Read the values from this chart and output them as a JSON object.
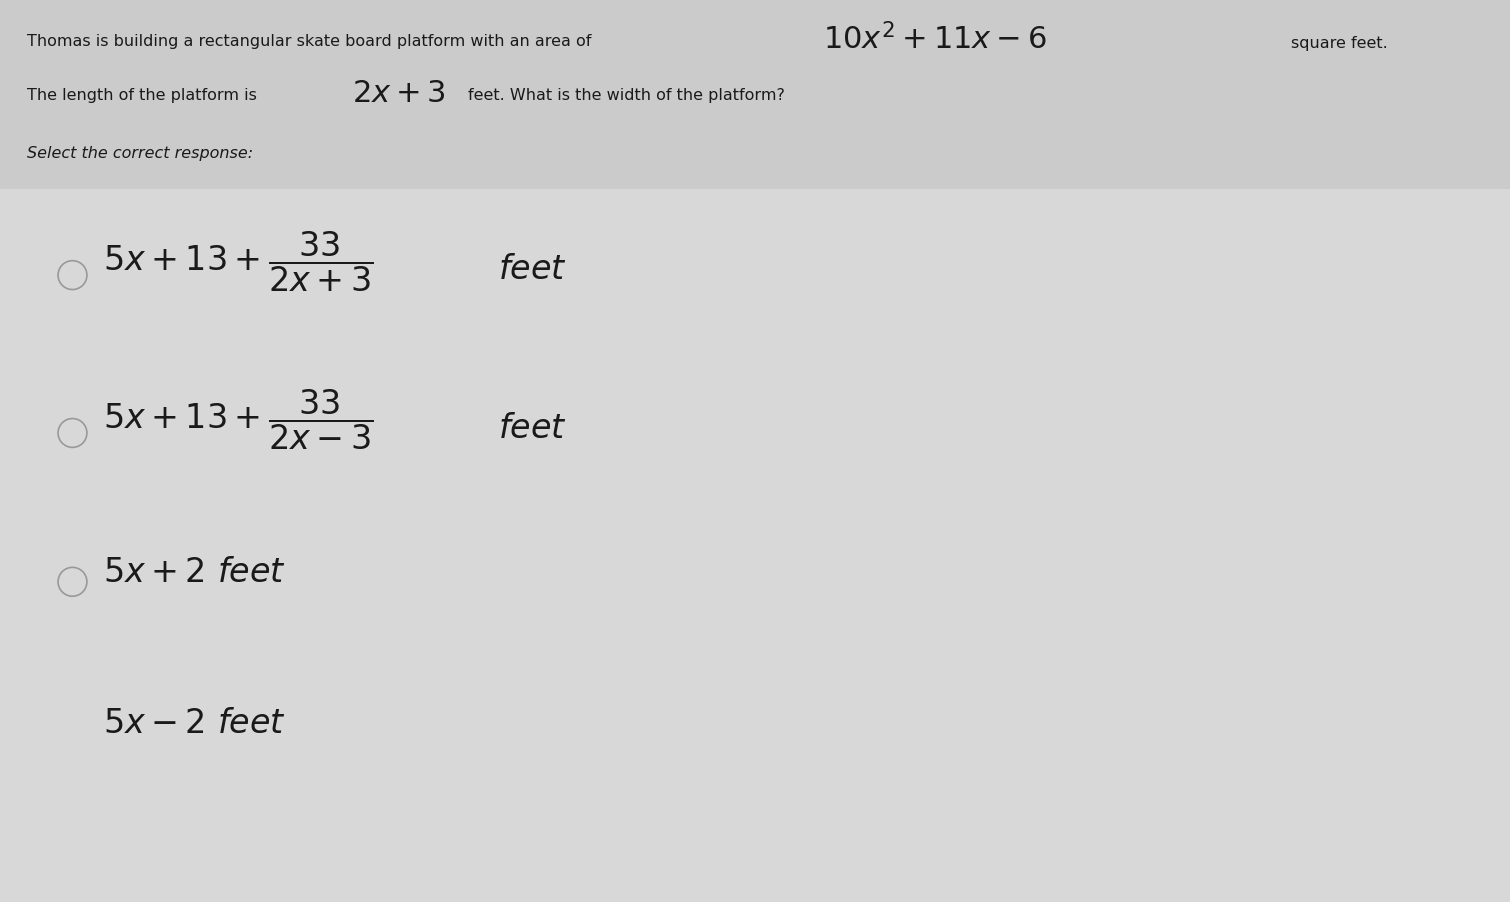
{
  "bg_color": "#cbcbcb",
  "options_bg_color": "#d8d8d8",
  "text_color": "#1a1a1a",
  "fig_width": 15.1,
  "fig_height": 9.02,
  "header_line1_plain": "Thomas is building a rectangular skate board platform with an area of",
  "header_line1_math": "$10x^2 + 11x - 6$",
  "header_line1_suffix": "square feet.",
  "header_line2_plain1": "The length of the platform is",
  "header_line2_math": "$2x + 3$",
  "header_line2_plain2": "feet. What is the width of the platform?",
  "select_text": "Select the correct response:",
  "radio_color": "#999999",
  "option1_expr": "$5x + 13 + \\dfrac{33}{2x+3}$",
  "option1_feet": "$feet$",
  "option2_expr": "$5x + 13 + \\dfrac{33}{2x-3}$",
  "option2_feet": "$feet$",
  "option3_expr": "$5x + 2\\ feet$",
  "option4_expr": "$5x - 2\\ feet$"
}
